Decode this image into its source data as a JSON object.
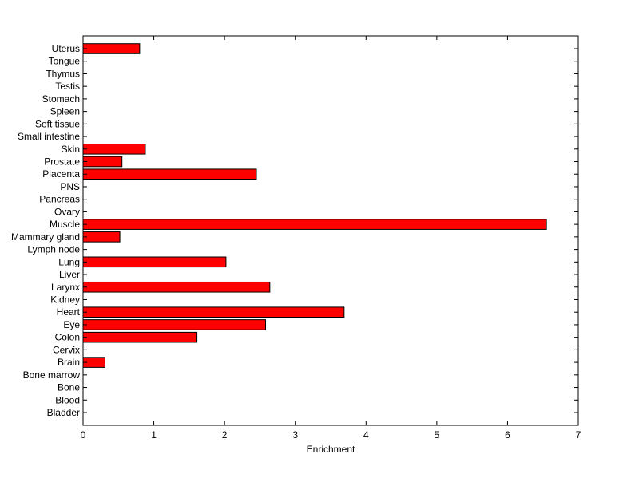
{
  "chart_data": {
    "type": "bar",
    "orientation": "horizontal",
    "xlabel": "Enrichment",
    "ylabel": "",
    "title": "",
    "xlim": [
      0,
      7
    ],
    "xticks": [
      0,
      1,
      2,
      3,
      4,
      5,
      6,
      7
    ],
    "grid": false,
    "bar_color": "#ff0000",
    "bar_edge_color": "#000000",
    "categories": [
      "Uterus",
      "Tongue",
      "Thymus",
      "Testis",
      "Stomach",
      "Spleen",
      "Soft tissue",
      "Small intestine",
      "Skin",
      "Prostate",
      "Placenta",
      "PNS",
      "Pancreas",
      "Ovary",
      "Muscle",
      "Mammary gland",
      "Lymph node",
      "Lung",
      "Liver",
      "Larynx",
      "Kidney",
      "Heart",
      "Eye",
      "Colon",
      "Cervix",
      "Brain",
      "Bone marrow",
      "Bone",
      "Blood",
      "Bladder"
    ],
    "values": [
      0.8,
      0,
      0,
      0,
      0,
      0,
      0,
      0,
      0.88,
      0.55,
      2.45,
      0,
      0,
      0,
      6.55,
      0.52,
      0,
      2.02,
      0,
      2.64,
      0,
      3.69,
      2.58,
      1.61,
      0,
      0.31,
      0,
      0,
      0,
      0
    ]
  }
}
